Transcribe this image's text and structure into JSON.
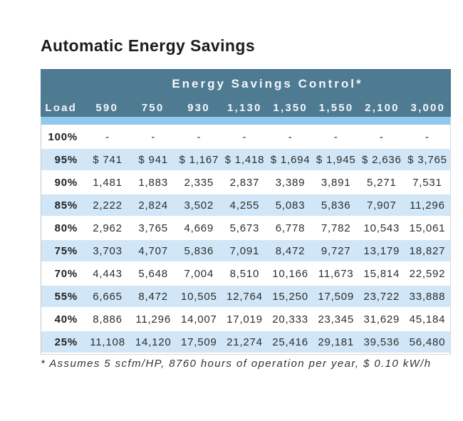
{
  "chart_data": {
    "type": "table",
    "title": "Automatic Energy Savings",
    "group_header": "Energy Savings Control*",
    "columns": [
      "Load",
      "590",
      "750",
      "930",
      "1,130",
      "1,350",
      "1,550",
      "2,100",
      "3,000"
    ],
    "rows": [
      [
        "100%",
        "-",
        "-",
        "-",
        "-",
        "-",
        "-",
        "-",
        "-"
      ],
      [
        "95%",
        "$ 741",
        "$ 941",
        "$ 1,167",
        "$ 1,418",
        "$ 1,694",
        "$ 1,945",
        "$ 2,636",
        "$ 3,765"
      ],
      [
        "90%",
        "1,481",
        "1,883",
        "2,335",
        "2,837",
        "3,389",
        "3,891",
        "5,271",
        "7,531"
      ],
      [
        "85%",
        "2,222",
        "2,824",
        "3,502",
        "4,255",
        "5,083",
        "5,836",
        "7,907",
        "11,296"
      ],
      [
        "80%",
        "2,962",
        "3,765",
        "4,669",
        "5,673",
        "6,778",
        "7,782",
        "10,543",
        "15,061"
      ],
      [
        "75%",
        "3,703",
        "4,707",
        "5,836",
        "7,091",
        "8,472",
        "9,727",
        "13,179",
        "18,827"
      ],
      [
        "70%",
        "4,443",
        "5,648",
        "7,004",
        "8,510",
        "10,166",
        "11,673",
        "15,814",
        "22,592"
      ],
      [
        "55%",
        "6,665",
        "8,472",
        "10,505",
        "12,764",
        "15,250",
        "17,509",
        "23,722",
        "33,888"
      ],
      [
        "40%",
        "8,886",
        "11,296",
        "14,007",
        "17,019",
        "20,333",
        "23,345",
        "31,629",
        "45,184"
      ],
      [
        "25%",
        "11,108",
        "14,120",
        "17,509",
        "21,274",
        "25,416",
        "29,181",
        "39,536",
        "56,480"
      ]
    ],
    "footnote": "* Assumes 5 scfm/HP, 8760 hours of operation per year, $ 0.10 kW/h",
    "layout_hints": {
      "first_column_header": "Load",
      "alternating_row_shading": "white / light blue, starting white at 100% row"
    }
  },
  "colors": {
    "header_bg": "#4e7a92",
    "header_text": "#f4f8fb",
    "separator_strip": "#8fc9ee",
    "row_alt_bg": "#d1e7f7",
    "body_text": "#2d2d2d"
  }
}
